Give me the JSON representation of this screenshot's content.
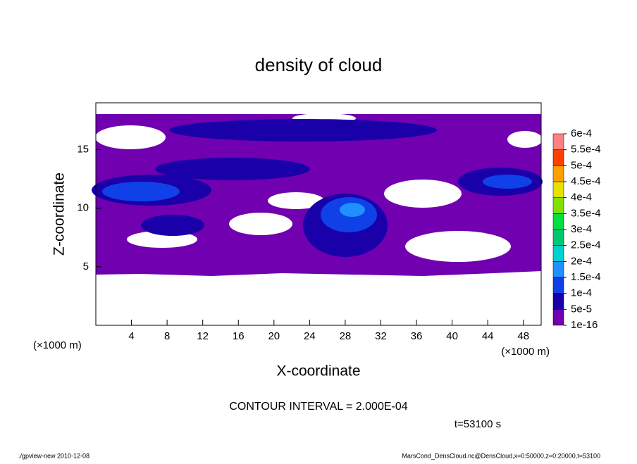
{
  "chart_data": {
    "type": "contour",
    "title": "density of cloud",
    "x_label": "X-coordinate",
    "y_label": "Z-coordinate",
    "x_unit": "(×1000 m)",
    "y_unit": "(×1000 m)",
    "xlim": [
      0,
      50
    ],
    "xticks": [
      4,
      8,
      12,
      16,
      20,
      24,
      28,
      32,
      36,
      40,
      44,
      48
    ],
    "ylim": [
      0,
      19
    ],
    "yticks": [
      5,
      10,
      15
    ],
    "levels": [
      {
        "value": 1e-16,
        "label": "1e-16"
      },
      {
        "value": 5e-05,
        "label": "5e-5"
      },
      {
        "value": 0.0001,
        "label": "1e-4"
      },
      {
        "value": 0.00015,
        "label": "1.5e-4"
      },
      {
        "value": 0.0002,
        "label": "2e-4"
      },
      {
        "value": 0.00025,
        "label": "2.5e-4"
      },
      {
        "value": 0.0003,
        "label": "3e-4"
      },
      {
        "value": 0.00035,
        "label": "3.5e-4"
      },
      {
        "value": 0.0004,
        "label": "4e-4"
      },
      {
        "value": 0.00045,
        "label": "4.5e-4"
      },
      {
        "value": 0.0005,
        "label": "5e-4"
      },
      {
        "value": 0.00055,
        "label": "5.5e-4"
      },
      {
        "value": 0.0006,
        "label": "6e-4"
      }
    ],
    "level_colors": [
      "#7000b0",
      "#1a00a8",
      "#1040e8",
      "#1e90ff",
      "#00d0d0",
      "#00c870",
      "#00e040",
      "#80e000",
      "#e8e000",
      "#ffa000",
      "#ff4000",
      "#ff8080"
    ],
    "contour_interval": "CONTOUR INTERVAL = 2.000E-04",
    "time": "t=53100 s",
    "footer_left": "./gpview-new  2010-12-08",
    "footer_right": "MarsCond_DensCloud.nc@DensCloud,x=0:50000,z=0:20000,t=53100"
  }
}
